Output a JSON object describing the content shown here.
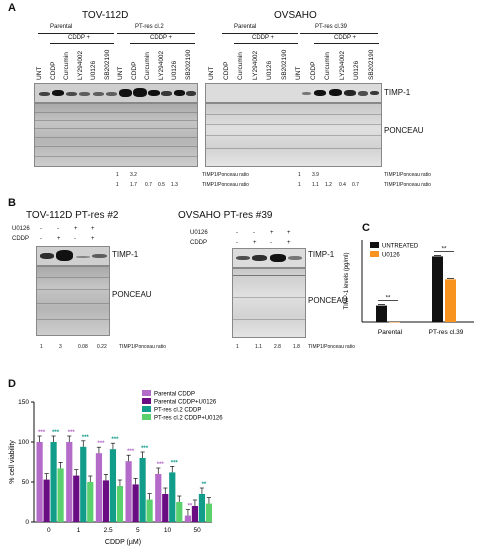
{
  "panelA": {
    "letter": "A",
    "left": {
      "title": "TOV-112D",
      "group1": "Parental",
      "group2": "PT-res cl.2",
      "cddp_plus_1": "CDDP +",
      "cddp_plus_2": "CDDP +",
      "lanes": [
        "UNT",
        "CDDP",
        "Curcumin",
        "LY294002",
        "U0126",
        "SB202190",
        "UNT",
        "CDDP",
        "Curcumin",
        "LY294002",
        "U0126",
        "SB202190"
      ],
      "ratios_row1": [
        "1",
        "3.2"
      ],
      "ratios_row2": [
        "1",
        "1.7",
        "0.7",
        "0.5",
        "1.3"
      ]
    },
    "right": {
      "title": "OVSAHO",
      "group1": "Parental",
      "group2": "PT-res cl.39",
      "cddp_plus_1": "CDDP +",
      "cddp_plus_2": "CDDP +",
      "lanes": [
        "UNT",
        "CDDP",
        "Curcumin",
        "LY294002",
        "U0126",
        "SB202190",
        "UNT",
        "CDDP",
        "Curcumin",
        "LY294002",
        "U0126",
        "SB202190"
      ],
      "ratios_row1": [
        "1",
        "3.9"
      ],
      "ratios_row2": [
        "1",
        "1.1",
        "1.2",
        "0.4",
        "0.7"
      ]
    },
    "timp_label": "TIMP-1",
    "ponceau_label": "PONCEAU",
    "ratio_label": "TIMP1/Ponceau ratio"
  },
  "panelB": {
    "letter": "B",
    "left_title": "TOV-112D PT-res #2",
    "right_title": "OVSAHO PT-res #39",
    "row_u0126": "U0126",
    "row_cddp": "CDDP",
    "u0126_signs": [
      "-",
      "-",
      "+",
      "+"
    ],
    "cddp_signs": [
      "-",
      "+",
      "-",
      "+"
    ],
    "timp_label": "TIMP-1",
    "ponceau_label": "PONCEAU",
    "left_ratios": [
      "1",
      "3",
      "0.08",
      "0.22"
    ],
    "right_ratios": [
      "1",
      "1.1",
      "2.8",
      "1.8"
    ],
    "ratio_label": "TIMP1/Ponceau ratio"
  },
  "panelC": {
    "letter": "C",
    "chart_data": {
      "type": "bar",
      "categories": [
        "Parental",
        "PT-res cl.39"
      ],
      "series": [
        {
          "name": "UNTREATED",
          "values": [
            1.0,
            4.0
          ],
          "color": "#111111"
        },
        {
          "name": "U0126",
          "values": [
            0.0,
            2.6
          ],
          "color": "#f7931e"
        }
      ],
      "ylabel": "TIMP-1 levels (pg/ml)",
      "ylim": [
        0,
        5
      ],
      "significance": [
        "**",
        "**"
      ],
      "legend_placement": "top-left"
    }
  },
  "panelD": {
    "letter": "D",
    "chart_data": {
      "type": "bar",
      "categories": [
        "0",
        "1",
        "2.5",
        "5",
        "10",
        "50"
      ],
      "xlabel": "CDDP (µM)",
      "ylabel": "% cell viability",
      "ylim": [
        0,
        150
      ],
      "yticks": [
        "0",
        "50",
        "100",
        "150"
      ],
      "series": [
        {
          "name": "Parental CDDP",
          "values": [
            100,
            100,
            86,
            76,
            60,
            8
          ],
          "color": "#b36ac9",
          "stars": [
            "***",
            "***",
            "***",
            "***",
            "***",
            "**"
          ]
        },
        {
          "name": "Parental CDDP+U0126",
          "values": [
            53,
            58,
            52,
            47,
            35,
            20
          ],
          "color": "#6a0d83",
          "stars": [
            "",
            "",
            "",
            "",
            "",
            ""
          ]
        },
        {
          "name": "PT-res cl.2 CDDP",
          "values": [
            100,
            94,
            91,
            80,
            62,
            35
          ],
          "color": "#129c8a",
          "stars": [
            "***",
            "***",
            "***",
            "***",
            "***",
            "**"
          ]
        },
        {
          "name": "PT-res cl.2 CDDP+U0126",
          "values": [
            67,
            50,
            45,
            28,
            25,
            23
          ],
          "color": "#5bd16e",
          "stars": [
            "",
            "",
            "",
            "",
            "",
            ""
          ]
        }
      ],
      "legend_placement": "top-right"
    }
  }
}
